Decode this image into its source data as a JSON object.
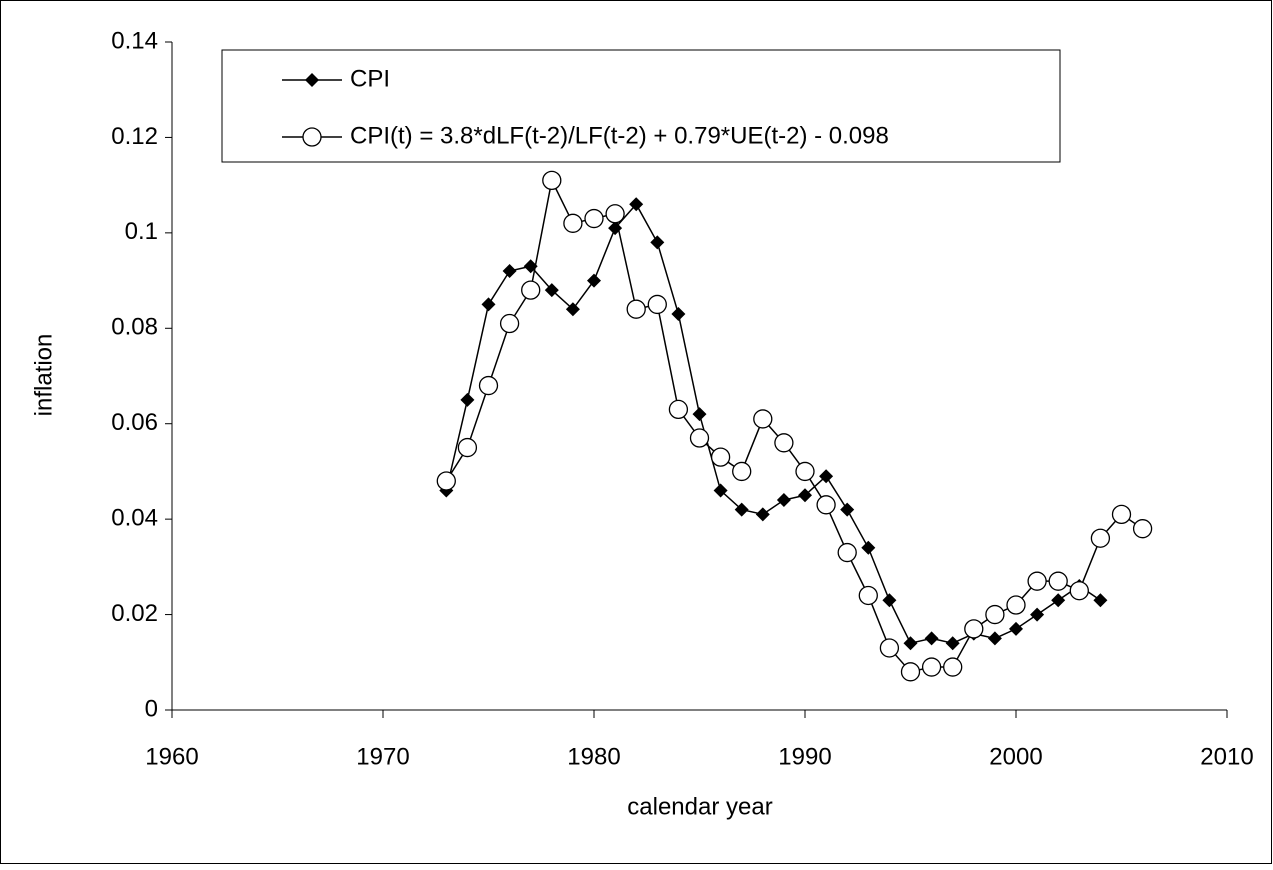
{
  "chart_data": {
    "type": "line",
    "xlabel": "calendar year",
    "ylabel": "inflation",
    "x": [
      1973,
      1974,
      1975,
      1976,
      1977,
      1978,
      1979,
      1980,
      1981,
      1982,
      1983,
      1984,
      1985,
      1986,
      1987,
      1988,
      1989,
      1990,
      1991,
      1992,
      1993,
      1994,
      1995,
      1996,
      1997,
      1998,
      1999,
      2000,
      2001,
      2002,
      2003,
      2004,
      2005,
      2006
    ],
    "series": [
      {
        "name": "CPI",
        "color": "#000000",
        "marker": "diamond",
        "values": [
          0.046,
          0.065,
          0.085,
          0.092,
          0.093,
          0.088,
          0.084,
          0.09,
          0.101,
          0.106,
          0.098,
          0.083,
          0.062,
          0.046,
          0.042,
          0.041,
          0.044,
          0.045,
          0.049,
          0.042,
          0.034,
          0.023,
          0.014,
          0.015,
          0.014,
          0.016,
          0.015,
          0.017,
          0.02,
          0.023,
          0.026,
          0.023,
          null,
          null
        ]
      },
      {
        "name": "CPI(t) = 3.8*dLF(t-2)/LF(t-2) + 0.79*UE(t-2) - 0.098",
        "color": "#000000",
        "marker": "circle",
        "values": [
          0.048,
          0.055,
          0.068,
          0.081,
          0.088,
          0.111,
          0.102,
          0.103,
          0.104,
          0.084,
          0.085,
          0.063,
          0.057,
          0.053,
          0.05,
          0.061,
          0.056,
          0.05,
          0.043,
          0.033,
          0.024,
          0.013,
          0.008,
          0.009,
          0.009,
          0.017,
          0.02,
          0.022,
          0.027,
          0.027,
          0.025,
          0.036,
          0.041,
          0.038
        ]
      }
    ],
    "xlim": [
      1960,
      2010
    ],
    "xticks": [
      1960,
      1970,
      1980,
      1990,
      2000,
      2010
    ],
    "ylim": [
      0,
      0.14
    ],
    "yticks": [
      0,
      0.02,
      0.04,
      0.06,
      0.08,
      0.1,
      0.12,
      0.14
    ]
  }
}
